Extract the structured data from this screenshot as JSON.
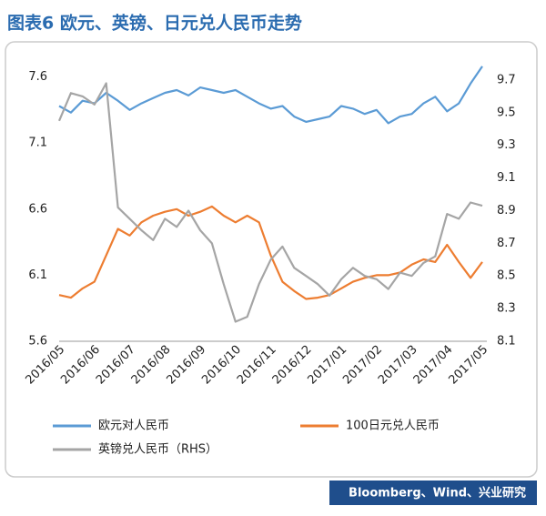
{
  "chart_data": {
    "type": "line",
    "title": "图表6 欧元、英镑、日元兑人民币走势",
    "source": "Bloomberg、Wind、兴业研究",
    "categories": [
      "2016/05",
      null,
      null,
      "2016/06",
      null,
      null,
      "2016/07",
      null,
      null,
      "2016/08",
      null,
      null,
      "2016/09",
      null,
      null,
      "2016/10",
      null,
      null,
      "2016/11",
      null,
      null,
      "2016/12",
      null,
      null,
      "2017/01",
      null,
      null,
      "2017/02",
      null,
      null,
      "2017/03",
      null,
      null,
      "2017/04",
      null,
      null,
      "2017/05"
    ],
    "series": [
      {
        "name": "欧元对人民币",
        "color": "#5b9bd5",
        "values": [
          7.38,
          7.33,
          7.42,
          7.4,
          7.48,
          7.42,
          7.35,
          7.4,
          7.44,
          7.48,
          7.5,
          7.46,
          7.52,
          7.5,
          7.48,
          7.5,
          7.45,
          7.4,
          7.36,
          7.38,
          7.3,
          7.26,
          7.28,
          7.3,
          7.38,
          7.36,
          7.32,
          7.35,
          7.25,
          7.3,
          7.32,
          7.4,
          7.45,
          7.34,
          7.4,
          7.55,
          7.68
        ]
      },
      {
        "name": "100日元兑人民币",
        "color": "#ed7d31",
        "values": [
          5.95,
          5.93,
          6.0,
          6.05,
          6.25,
          6.45,
          6.4,
          6.5,
          6.55,
          6.58,
          6.6,
          6.55,
          6.58,
          6.62,
          6.55,
          6.5,
          6.55,
          6.5,
          6.25,
          6.05,
          5.98,
          5.92,
          5.93,
          5.95,
          6.0,
          6.05,
          6.08,
          6.1,
          6.1,
          6.12,
          6.18,
          6.22,
          6.2,
          6.33,
          6.2,
          6.08,
          6.2
        ]
      },
      {
        "name": "英镑兑人民币（RHS）",
        "color": "#a5a5a5",
        "axis": "y2",
        "values": [
          9.45,
          9.62,
          9.6,
          9.55,
          9.68,
          8.92,
          8.85,
          8.78,
          8.72,
          8.85,
          8.8,
          8.9,
          8.78,
          8.7,
          8.45,
          8.22,
          8.25,
          8.45,
          8.6,
          8.68,
          8.55,
          8.5,
          8.45,
          8.38,
          8.48,
          8.55,
          8.5,
          8.48,
          8.42,
          8.52,
          8.5,
          8.58,
          8.62,
          8.88,
          8.85,
          8.95,
          8.93
        ]
      }
    ],
    "ylim": [
      5.6,
      7.7
    ],
    "yticks": [
      5.6,
      6.1,
      6.6,
      7.1,
      7.6
    ],
    "y2lim": [
      8.1,
      9.8
    ],
    "y2ticks": [
      8.1,
      8.3,
      8.5,
      8.7,
      8.9,
      9.1,
      9.3,
      9.5,
      9.7
    ],
    "grid": false
  }
}
